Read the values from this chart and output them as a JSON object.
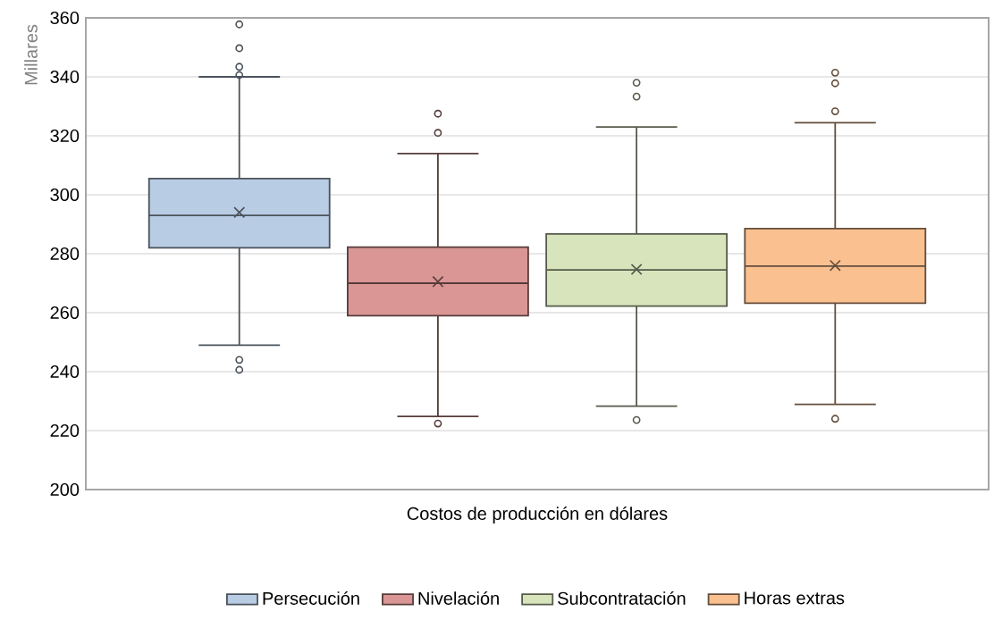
{
  "chart_data": {
    "type": "box",
    "xlabel": "Costos de producción en dólares",
    "ylabel": "Millares",
    "categories": [
      null
    ],
    "ylim": [
      200,
      360
    ],
    "yticks": [
      200,
      220,
      240,
      260,
      280,
      300,
      320,
      340,
      360
    ],
    "grid": "y",
    "legend": "bottom",
    "series": [
      {
        "name": "Persecución",
        "color": "#b8cce4",
        "boxes": [
          {
            "low": 249,
            "q1": 282,
            "median": 293,
            "q3": 305.5,
            "high": 340,
            "mean": 294,
            "outliers": [
              357.8,
              349.7,
              343.4,
              340.6,
              244,
              240.6
            ]
          }
        ]
      },
      {
        "name": "Nivelación",
        "color": "#da9694",
        "boxes": [
          {
            "low": 224.8,
            "q1": 259,
            "median": 270,
            "q3": 282.2,
            "high": 314,
            "mean": 270.5,
            "outliers": [
              327.5,
              321,
              222.4
            ]
          }
        ]
      },
      {
        "name": "Subcontratación",
        "color": "#d8e4bc",
        "boxes": [
          {
            "low": 228.3,
            "q1": 262.2,
            "median": 274.5,
            "q3": 286.7,
            "high": 323,
            "mean": 274.7,
            "outliers": [
              338,
              333.3,
              223.6
            ]
          }
        ]
      },
      {
        "name": "Horas extras",
        "color": "#fac090",
        "boxes": [
          {
            "low": 228.9,
            "q1": 263.2,
            "median": 275.8,
            "q3": 288.5,
            "high": 324.4,
            "mean": 276,
            "outliers": [
              341.4,
              337.8,
              328.3,
              224
            ]
          }
        ]
      }
    ]
  }
}
